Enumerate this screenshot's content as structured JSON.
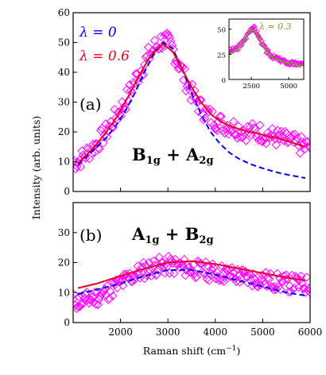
{
  "colors": {
    "data": "#ff00ff",
    "fit_red": "#e8001c",
    "fit_blue": "#0000ee",
    "inset_fit": "#8a8a3a",
    "axes": "#000000"
  },
  "chart_data": [
    {
      "type": "scatter",
      "panel_label": "(a)",
      "symmetry_label": [
        "B",
        "1g",
        " + ",
        "A",
        "2g"
      ],
      "xlabel": "",
      "ylabel": "Intensity (arb. units)",
      "xlim": [
        1000,
        6000
      ],
      "ylim": [
        0,
        60
      ],
      "yticks": [
        0,
        10,
        20,
        30,
        40,
        50,
        60
      ],
      "legend_placement": "top-left",
      "series": [
        {
          "name": "",
          "kind": "markers-diamond",
          "x": [
            1100,
            1300,
            1500,
            1700,
            1900,
            2100,
            2300,
            2500,
            2700,
            2900,
            3100,
            3300,
            3500,
            3700,
            3900,
            4100,
            4300,
            4500,
            4700,
            4900,
            5100,
            5300,
            5500,
            5700,
            5900
          ],
          "values": [
            10,
            13,
            16,
            20,
            25,
            30,
            37,
            43,
            48,
            51,
            48,
            40,
            33,
            28,
            25,
            23,
            22,
            21,
            20,
            20,
            19,
            18,
            17,
            16,
            15
          ]
        },
        {
          "name": "λ = 0",
          "kind": "dashed-line",
          "x": [
            1100,
            1300,
            1500,
            1700,
            1900,
            2100,
            2300,
            2500,
            2700,
            2900,
            3100,
            3300,
            3500,
            3700,
            3900,
            4100,
            4300,
            4500,
            4700,
            4900,
            5100,
            5300,
            5500,
            5700,
            5900
          ],
          "values": [
            9,
            12,
            15,
            18,
            22,
            27,
            33,
            40,
            46,
            50,
            48,
            41,
            33,
            26,
            20,
            16,
            13,
            11,
            9.5,
            8.3,
            7.3,
            6.4,
            5.7,
            5.1,
            4.5
          ]
        },
        {
          "name": "λ = 0.6",
          "kind": "solid-line",
          "x": [
            1100,
            1300,
            1500,
            1700,
            1900,
            2100,
            2300,
            2500,
            2700,
            2900,
            3100,
            3300,
            3500,
            3700,
            3900,
            4100,
            4300,
            4500,
            4700,
            4900,
            5100,
            5300,
            5500,
            5700,
            5900
          ],
          "values": [
            9.5,
            12.5,
            16,
            20,
            24.5,
            30,
            36,
            42,
            47,
            49.5,
            47,
            41,
            35,
            30,
            26,
            23.5,
            22,
            21,
            20,
            19.5,
            18.5,
            18,
            17,
            16,
            15
          ]
        }
      ]
    },
    {
      "type": "scatter",
      "inset": true,
      "xlim": [
        1000,
        6000
      ],
      "ylim": [
        0,
        60
      ],
      "xticks": [
        2500,
        5000
      ],
      "yticks": [
        0,
        25,
        50
      ],
      "series": [
        {
          "name": "",
          "kind": "markers-diamond",
          "x": [
            1000,
            1500,
            2000,
            2250,
            2500,
            2750,
            3000,
            3500,
            4000,
            5000,
            6000
          ],
          "values": [
            28,
            30,
            38,
            45,
            52,
            50,
            42,
            28,
            22,
            16,
            15
          ]
        },
        {
          "name": "λ = 0.3",
          "kind": "solid-line",
          "x": [
            1000,
            1500,
            2000,
            2250,
            2500,
            2750,
            3000,
            3500,
            4000,
            5000,
            6000
          ],
          "values": [
            25,
            30,
            38,
            45,
            50,
            48,
            40,
            28,
            21,
            16,
            14
          ]
        }
      ]
    },
    {
      "type": "scatter",
      "panel_label": "(b)",
      "symmetry_label": [
        "A",
        "1g",
        " + ",
        "B",
        "2g"
      ],
      "xlabel": "Raman shift (cm",
      "xlabel_sup": "−1",
      "xlabel_end": ")",
      "ylabel": "",
      "xlim": [
        1000,
        6000
      ],
      "ylim": [
        0,
        40
      ],
      "xticks": [
        2000,
        3000,
        4000,
        5000,
        6000
      ],
      "yticks": [
        0,
        10,
        20,
        30
      ],
      "series": [
        {
          "name": "",
          "kind": "markers-diamond",
          "x": [
            1100,
            1300,
            1500,
            1700,
            1900,
            2100,
            2300,
            2500,
            2700,
            2900,
            3100,
            3300,
            3500,
            3700,
            3900,
            4100,
            4300,
            4500,
            4700,
            4900,
            5100,
            5300,
            5500,
            5700,
            5900
          ],
          "values": [
            7,
            7.5,
            8.5,
            10,
            12,
            14,
            16,
            17.5,
            18.5,
            19,
            19,
            18.5,
            18,
            17.5,
            17,
            16.5,
            16,
            15.5,
            15,
            14.5,
            14,
            13.5,
            13,
            13,
            12.5
          ]
        },
        {
          "name": "",
          "kind": "dashed-line",
          "x": [
            1100,
            1500,
            2000,
            2500,
            3000,
            3500,
            4000,
            4500,
            5000,
            5500,
            5900
          ],
          "values": [
            9.5,
            11,
            13,
            15.5,
            17.5,
            17.5,
            16,
            14,
            12,
            10,
            9
          ]
        },
        {
          "name": "",
          "kind": "solid-line",
          "x": [
            1100,
            1500,
            2000,
            2500,
            3000,
            3500,
            4000,
            4500,
            5000,
            5500,
            5900
          ],
          "values": [
            11.5,
            13,
            15.5,
            18,
            20,
            20.5,
            19.5,
            18,
            16.5,
            15,
            14
          ]
        }
      ]
    }
  ]
}
